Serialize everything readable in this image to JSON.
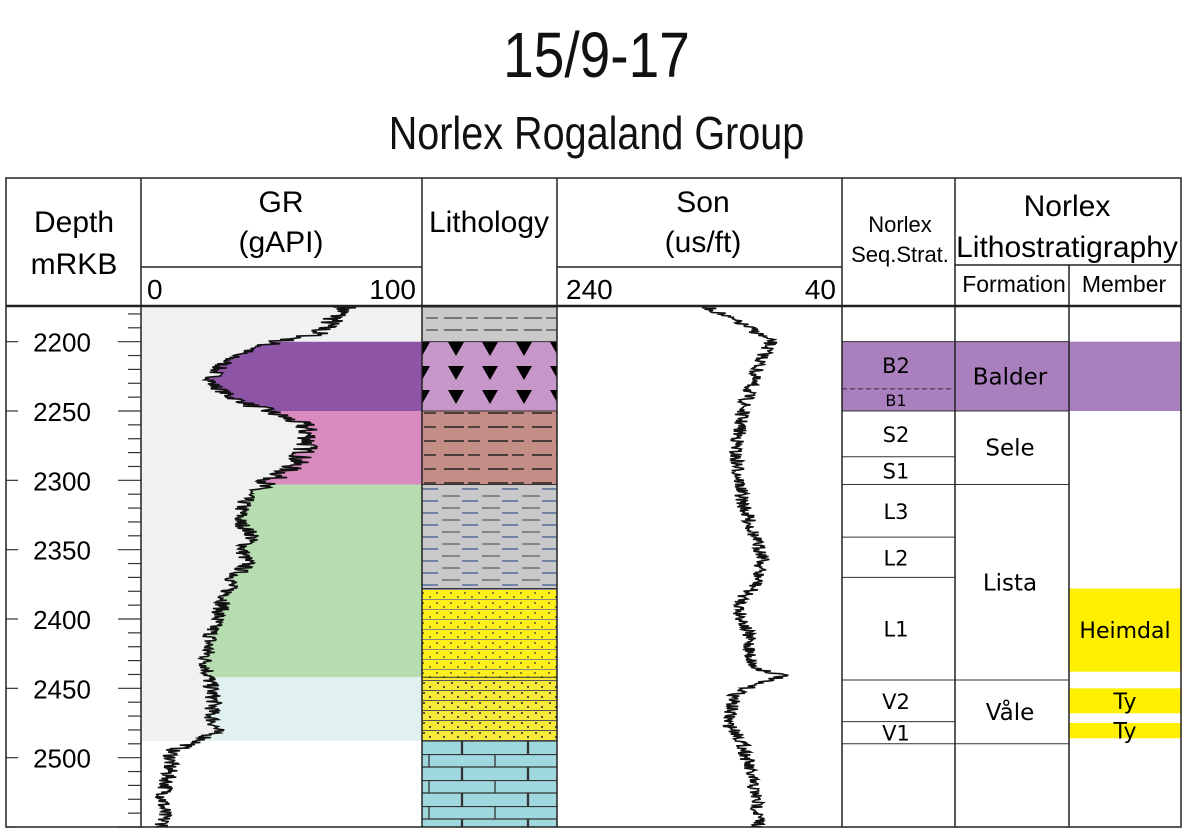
{
  "title": "15/9-17",
  "subtitle": "Norlex Rogaland Group",
  "headers": {
    "depth": [
      "Depth",
      "mRKB"
    ],
    "gr": {
      "name": "GR",
      "unit": "(gAPI)",
      "min": "0",
      "max": "100"
    },
    "lithology": "Lithology",
    "son": {
      "name": "Son",
      "unit": "(us/ft)",
      "left": "240",
      "right": "40"
    },
    "seq": [
      "Norlex",
      "Seq.Strat."
    ],
    "litho": {
      "title": [
        "Norlex",
        "Lithostratigraphy"
      ],
      "formation": "Formation",
      "member": "Member"
    }
  },
  "chart_data": {
    "type": "well-log",
    "depth_range": [
      2175,
      2550
    ],
    "depth_ticks": [
      "2200",
      "2250",
      "2300",
      "2350",
      "2400",
      "2450",
      "2500"
    ],
    "gr_scale": [
      0,
      100
    ],
    "son_scale": [
      240,
      40
    ],
    "gr_fill_zones": [
      {
        "top": 2200,
        "base": 2250,
        "color": "#8e54a6"
      },
      {
        "top": 2250,
        "base": 2303,
        "color": "#d98bbf"
      },
      {
        "top": 2303,
        "base": 2442,
        "color": "#b7dcb1"
      },
      {
        "top": 2442,
        "base": 2488,
        "color": "#e1f1ef"
      }
    ],
    "gr_profile": [
      [
        2175,
        73
      ],
      [
        2185,
        68
      ],
      [
        2195,
        62
      ],
      [
        2200,
        48
      ],
      [
        2210,
        33
      ],
      [
        2220,
        27
      ],
      [
        2230,
        25
      ],
      [
        2240,
        32
      ],
      [
        2250,
        45
      ],
      [
        2260,
        58
      ],
      [
        2270,
        60
      ],
      [
        2280,
        58
      ],
      [
        2290,
        54
      ],
      [
        2300,
        46
      ],
      [
        2310,
        38
      ],
      [
        2320,
        36
      ],
      [
        2330,
        35
      ],
      [
        2340,
        40
      ],
      [
        2350,
        36
      ],
      [
        2360,
        38
      ],
      [
        2370,
        33
      ],
      [
        2380,
        31
      ],
      [
        2390,
        29
      ],
      [
        2400,
        27
      ],
      [
        2410,
        25
      ],
      [
        2420,
        24
      ],
      [
        2430,
        23
      ],
      [
        2440,
        24
      ],
      [
        2450,
        25
      ],
      [
        2460,
        26
      ],
      [
        2470,
        25
      ],
      [
        2480,
        27
      ],
      [
        2488,
        21
      ],
      [
        2495,
        11
      ],
      [
        2510,
        10
      ],
      [
        2530,
        8
      ],
      [
        2550,
        8
      ]
    ],
    "son_profile": [
      [
        2175,
        135
      ],
      [
        2190,
        105
      ],
      [
        2200,
        90
      ],
      [
        2210,
        95
      ],
      [
        2220,
        100
      ],
      [
        2235,
        105
      ],
      [
        2250,
        110
      ],
      [
        2265,
        112
      ],
      [
        2280,
        115
      ],
      [
        2300,
        112
      ],
      [
        2315,
        110
      ],
      [
        2330,
        105
      ],
      [
        2345,
        100
      ],
      [
        2355,
        95
      ],
      [
        2365,
        98
      ],
      [
        2375,
        100
      ],
      [
        2385,
        110
      ],
      [
        2395,
        112
      ],
      [
        2405,
        108
      ],
      [
        2415,
        105
      ],
      [
        2425,
        105
      ],
      [
        2435,
        102
      ],
      [
        2441,
        80
      ],
      [
        2446,
        100
      ],
      [
        2455,
        115
      ],
      [
        2465,
        118
      ],
      [
        2475,
        120
      ],
      [
        2485,
        112
      ],
      [
        2495,
        108
      ],
      [
        2510,
        105
      ],
      [
        2530,
        100
      ],
      [
        2550,
        98
      ]
    ],
    "lithology": [
      {
        "top": 2175,
        "base": 2200,
        "type": "grey-shale"
      },
      {
        "top": 2200,
        "base": 2250,
        "type": "tuff"
      },
      {
        "top": 2250,
        "base": 2303,
        "type": "red-shale"
      },
      {
        "top": 2303,
        "base": 2378,
        "type": "grey-shale-laminated"
      },
      {
        "top": 2378,
        "base": 2442,
        "type": "sand-shale"
      },
      {
        "top": 2442,
        "base": 2488,
        "type": "sand-mixed"
      },
      {
        "top": 2488,
        "base": 2550,
        "type": "chalk"
      }
    ],
    "seq_units": [
      {
        "label": "B2",
        "top": 2200,
        "base": 2234
      },
      {
        "label": "B1",
        "top": 2234,
        "base": 2250
      },
      {
        "label": "S2",
        "top": 2250,
        "base": 2283
      },
      {
        "label": "S1",
        "top": 2283,
        "base": 2303
      },
      {
        "label": "L3",
        "top": 2303,
        "base": 2341
      },
      {
        "label": "L2",
        "top": 2341,
        "base": 2370
      },
      {
        "label": "L1",
        "top": 2370,
        "base": 2444
      },
      {
        "label": "V2",
        "top": 2444,
        "base": 2474
      },
      {
        "label": "V1",
        "top": 2474,
        "base": 2490
      }
    ],
    "formations": [
      {
        "label": "Balder",
        "top": 2200,
        "base": 2250
      },
      {
        "label": "Sele",
        "top": 2250,
        "base": 2303
      },
      {
        "label": "Lista",
        "top": 2303,
        "base": 2444
      },
      {
        "label": "Våle",
        "top": 2444,
        "base": 2490
      }
    ],
    "members": [
      {
        "label": "",
        "top": 2200,
        "base": 2250,
        "color": "#a97fbd"
      },
      {
        "label": "Heimdal",
        "top": 2378,
        "base": 2438,
        "color": "#ffef00"
      },
      {
        "label": "Ty",
        "top": 2450,
        "base": 2468,
        "color": "#ffef00"
      },
      {
        "label": "Ty",
        "top": 2475,
        "base": 2486,
        "color": "#ffef00"
      }
    ],
    "colors": {
      "balder": "#a97fbd",
      "yellow": "#ffef00",
      "grid": "#222222"
    }
  }
}
